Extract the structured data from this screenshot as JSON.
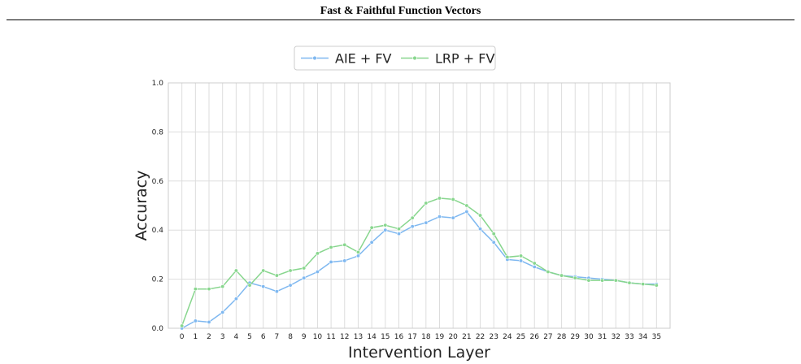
{
  "header": {
    "title": "Fast & Faithful Function Vectors"
  },
  "chart_data": {
    "type": "line",
    "title": "",
    "xlabel": "Intervention Layer",
    "ylabel": "Accuracy",
    "x": [
      0,
      1,
      2,
      3,
      4,
      5,
      6,
      7,
      8,
      9,
      10,
      11,
      12,
      13,
      14,
      15,
      16,
      17,
      18,
      19,
      20,
      21,
      22,
      23,
      24,
      25,
      26,
      27,
      28,
      29,
      30,
      31,
      32,
      33,
      34,
      35
    ],
    "ylim": [
      0,
      1
    ],
    "yticks": [
      "0.0",
      "0.2",
      "0.4",
      "0.6",
      "0.8",
      "1.0"
    ],
    "grid": true,
    "legend_position": "top-center",
    "series": [
      {
        "name": "AIE + FV",
        "color": "#7fb8f0",
        "values": [
          0.0,
          0.03,
          0.025,
          0.065,
          0.12,
          0.185,
          0.17,
          0.15,
          0.175,
          0.205,
          0.23,
          0.27,
          0.275,
          0.295,
          0.35,
          0.4,
          0.385,
          0.415,
          0.43,
          0.455,
          0.45,
          0.475,
          0.405,
          0.35,
          0.28,
          0.275,
          0.25,
          0.23,
          0.215,
          0.21,
          0.205,
          0.2,
          0.195,
          0.185,
          0.18,
          0.18
        ]
      },
      {
        "name": "LRP + FV",
        "color": "#88d68e",
        "values": [
          0.01,
          0.16,
          0.16,
          0.17,
          0.235,
          0.175,
          0.235,
          0.215,
          0.235,
          0.245,
          0.305,
          0.33,
          0.34,
          0.31,
          0.41,
          0.42,
          0.405,
          0.45,
          0.51,
          0.53,
          0.525,
          0.5,
          0.46,
          0.385,
          0.29,
          0.295,
          0.265,
          0.23,
          0.215,
          0.205,
          0.195,
          0.195,
          0.195,
          0.185,
          0.18,
          0.175
        ]
      }
    ]
  }
}
